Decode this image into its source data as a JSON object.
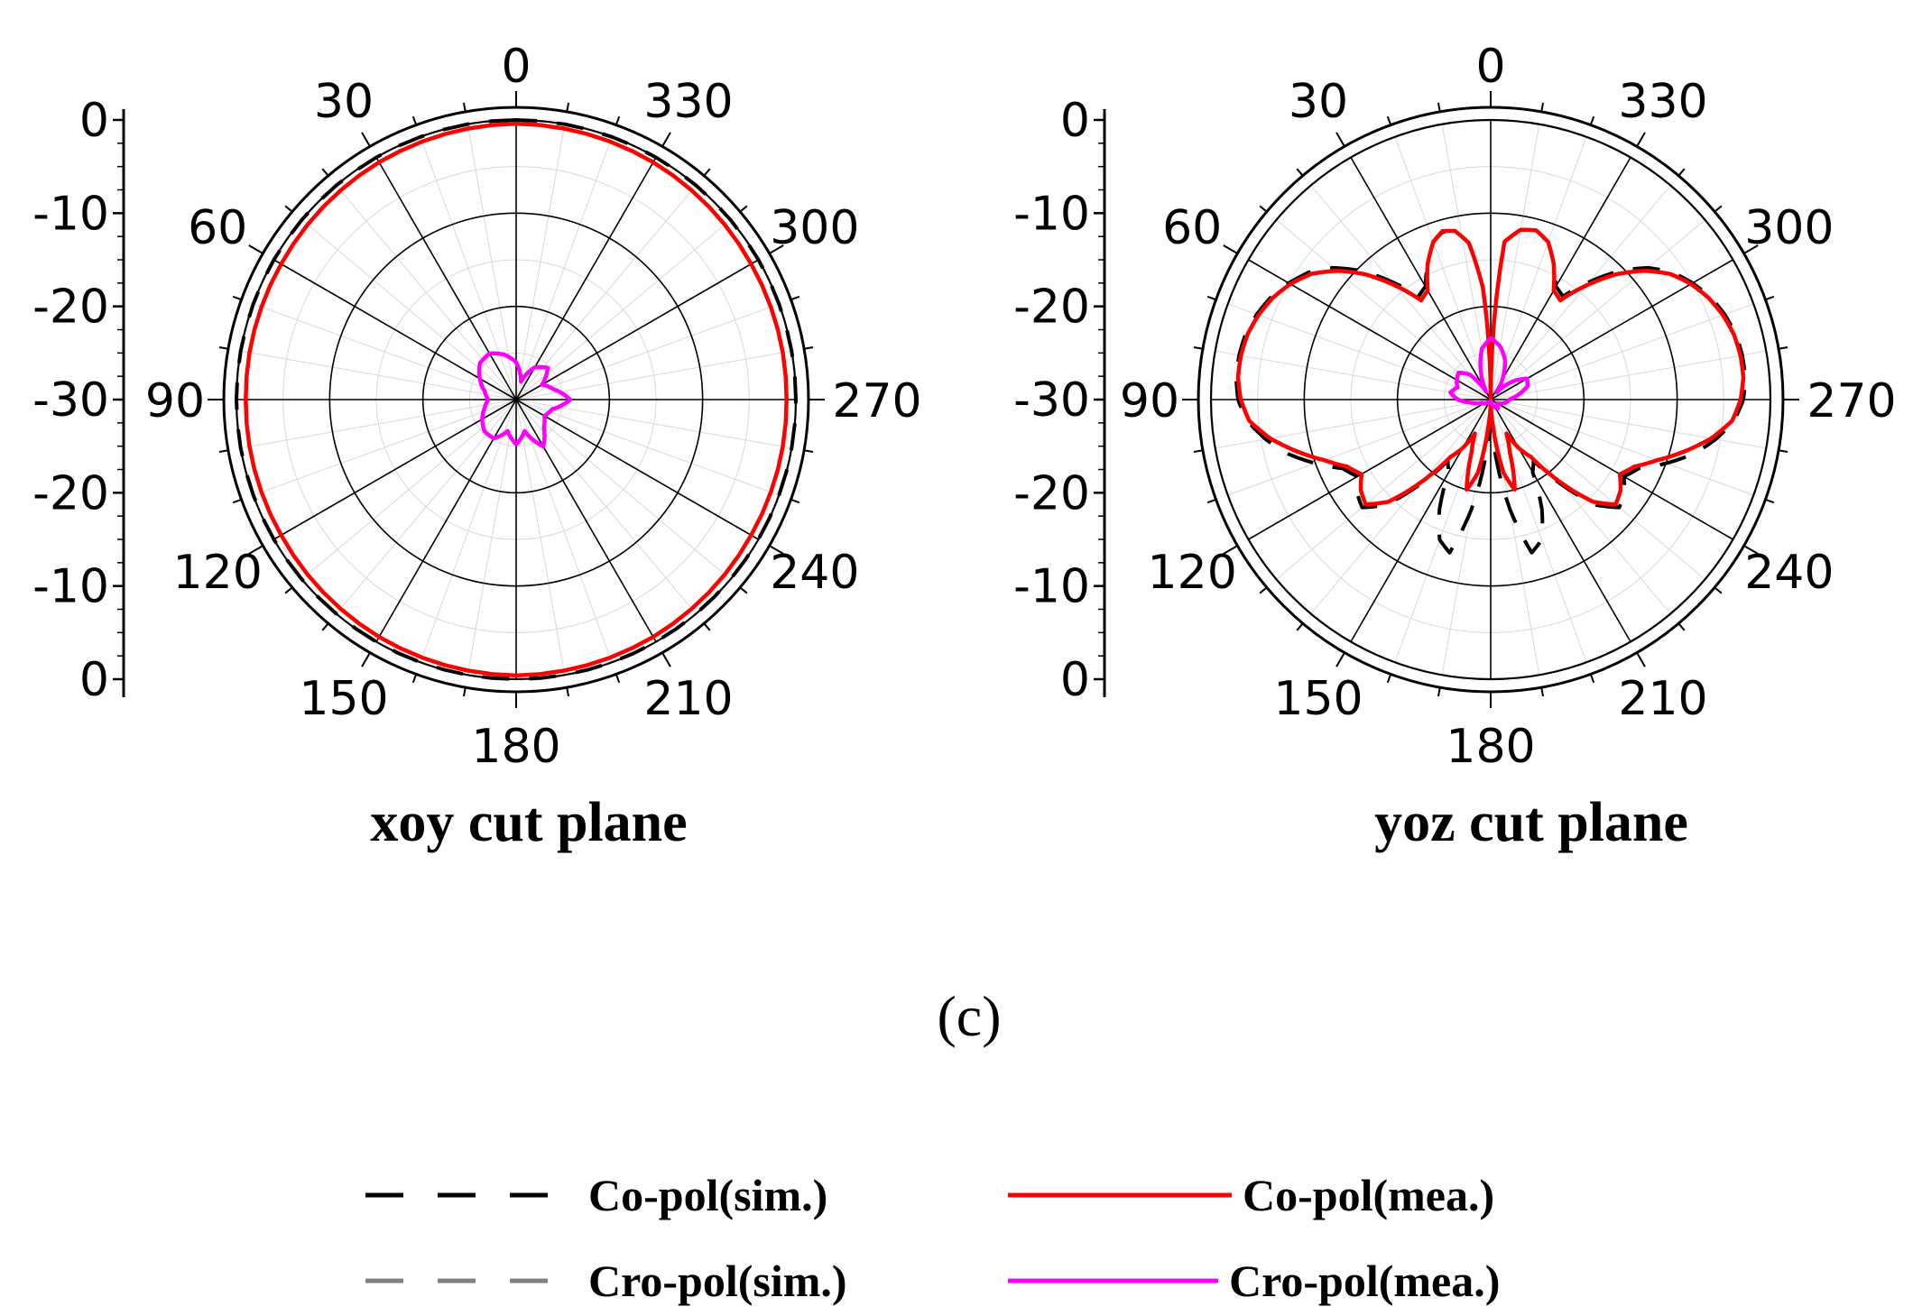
{
  "figure": {
    "panel_label": "(c)",
    "colors": {
      "co_sim": "#000000",
      "cro_sim": "#808080",
      "co_mea": "#ff0000",
      "cro_mea": "#ff00ff",
      "grid": "#000000"
    }
  },
  "legend": [
    {
      "key": "co_sim",
      "label": "Co-pol(sim.)",
      "style": "dashed",
      "color": "#000000"
    },
    {
      "key": "co_mea",
      "label": "Co-pol(mea.)",
      "style": "solid",
      "color": "#ff0000"
    },
    {
      "key": "cro_sim",
      "label": "Cro-pol(sim.)",
      "style": "dashed",
      "color": "#808080"
    },
    {
      "key": "cro_mea",
      "label": "Cro-pol(mea.)",
      "style": "solid",
      "color": "#ff00ff"
    }
  ],
  "chart_data": [
    {
      "type": "polar",
      "title": "xoy cut plane",
      "angle_direction": "counterclockwise",
      "zero_at": "top",
      "angle_ticks": [
        "0",
        "30",
        "60",
        "90",
        "120",
        "150",
        "180",
        "210",
        "240",
        "270",
        "300",
        "330"
      ],
      "radial_unit": "dB",
      "rlim": [
        -30,
        0
      ],
      "radial_ticks": [
        "0",
        "-10",
        "-20",
        "-30",
        "-20",
        "-10",
        "0"
      ],
      "grid": true,
      "series": [
        {
          "key": "co_sim",
          "angles": [
            0,
            30,
            60,
            90,
            120,
            150,
            180,
            210,
            240,
            270,
            300,
            330
          ],
          "values": [
            0,
            0,
            0,
            0,
            0,
            0,
            0,
            0,
            0,
            0,
            0,
            0
          ]
        },
        {
          "key": "co_mea",
          "angles": [
            0,
            30,
            60,
            90,
            120,
            150,
            180,
            210,
            240,
            270,
            300,
            330
          ],
          "values": [
            -0.4,
            -0.6,
            -0.9,
            -1.0,
            -0.9,
            -0.6,
            -0.4,
            -0.6,
            -0.9,
            -1.0,
            -0.9,
            -0.6
          ]
        },
        {
          "key": "cro_mea",
          "angles": [
            0,
            15,
            30,
            45,
            60,
            75,
            90,
            105,
            120,
            135,
            150,
            165,
            180,
            195,
            210,
            225,
            240,
            255,
            270,
            285,
            300,
            315,
            330,
            345
          ],
          "values": [
            -26,
            -25,
            -24.3,
            -24.5,
            -25.5,
            -26.5,
            -27,
            -26.5,
            -25.8,
            -25.2,
            -25.2,
            -26.5,
            -25.2,
            -26.5,
            -24.2,
            -25.8,
            -26.5,
            -26,
            -24.2,
            -25.8,
            -26.8,
            -25.2,
            -26,
            -28
          ]
        }
      ]
    },
    {
      "type": "polar",
      "title": "yoz cut plane",
      "angle_direction": "counterclockwise",
      "zero_at": "top",
      "angle_ticks": [
        "0",
        "30",
        "60",
        "90",
        "120",
        "150",
        "180",
        "210",
        "240",
        "270",
        "300",
        "330"
      ],
      "radial_unit": "dB",
      "rlim": [
        -30,
        0
      ],
      "radial_ticks": [
        "0",
        "-10",
        "-20",
        "-30",
        "-20",
        "-10",
        "0"
      ],
      "grid": true,
      "series": [
        {
          "key": "co_sim",
          "angles": [
            0,
            4,
            8,
            12,
            16,
            20,
            25,
            30,
            35,
            40,
            45,
            50,
            55,
            60,
            65,
            70,
            75,
            80,
            85,
            90,
            95,
            100,
            105,
            110,
            115,
            120,
            125,
            130,
            135,
            140,
            145,
            150,
            155,
            160,
            165,
            170,
            175,
            180,
            185,
            190,
            195,
            200,
            205,
            210,
            215,
            220,
            225,
            230,
            235,
            240,
            245,
            250,
            255,
            260,
            265,
            270,
            275,
            280,
            285,
            290,
            295,
            300,
            305,
            310,
            315,
            320,
            325,
            330,
            335,
            340,
            345,
            350,
            355
          ],
          "values": [
            -30,
            -18,
            -13,
            -11.5,
            -11.3,
            -12,
            -14,
            -16,
            -16.5,
            -13.5,
            -10.5,
            -8,
            -6.2,
            -5,
            -4,
            -3.3,
            -2.8,
            -2.6,
            -2.6,
            -2.9,
            -3.8,
            -5.5,
            -7.5,
            -10,
            -12.5,
            -13.5,
            -12.5,
            -12,
            -14,
            -18,
            -22,
            -21,
            -17,
            -14,
            -13,
            -18,
            -24,
            -30,
            -24,
            -18,
            -13,
            -14,
            -17,
            -21,
            -22,
            -18,
            -14,
            -12,
            -12.5,
            -13.5,
            -12.5,
            -10,
            -7.5,
            -5.5,
            -3.8,
            -2.9,
            -2.6,
            -2.6,
            -2.8,
            -3.3,
            -4,
            -5,
            -6.2,
            -8,
            -10.5,
            -13.5,
            -16.5,
            -16,
            -14,
            -12,
            -11.3,
            -11.5,
            -13
          ]
        },
        {
          "key": "co_mea",
          "angles": [
            0,
            4,
            8,
            12,
            16,
            20,
            25,
            30,
            35,
            40,
            45,
            50,
            55,
            60,
            65,
            70,
            75,
            80,
            85,
            90,
            95,
            100,
            105,
            110,
            115,
            120,
            125,
            130,
            135,
            140,
            145,
            150,
            155,
            160,
            165,
            170,
            175,
            180,
            185,
            190,
            195,
            200,
            205,
            210,
            215,
            220,
            225,
            230,
            235,
            240,
            245,
            250,
            255,
            260,
            265,
            270,
            275,
            280,
            285,
            290,
            295,
            300,
            305,
            310,
            315,
            320,
            325,
            330,
            335,
            340,
            345,
            350,
            355
          ],
          "values": [
            -30,
            -18,
            -13,
            -11.5,
            -11.2,
            -12,
            -14,
            -16.5,
            -17,
            -14,
            -11,
            -8.5,
            -6.5,
            -5.2,
            -4.2,
            -3.5,
            -3,
            -2.8,
            -2.8,
            -3.2,
            -4,
            -6,
            -8.5,
            -11,
            -13,
            -14,
            -13,
            -12.5,
            -14.5,
            -18.5,
            -22.5,
            -24,
            -26,
            -24,
            -20,
            -22,
            -27,
            -30,
            -27,
            -22,
            -20,
            -24,
            -26,
            -24,
            -22.5,
            -18.5,
            -14.5,
            -12.5,
            -13,
            -14,
            -13,
            -11,
            -8.5,
            -6,
            -4,
            -3.2,
            -2.8,
            -2.8,
            -3,
            -3.5,
            -4.2,
            -5.2,
            -6.5,
            -8.5,
            -11,
            -14,
            -17,
            -16.5,
            -14,
            -12,
            -11.2,
            -11.5,
            -13
          ]
        },
        {
          "key": "cro_mea",
          "angles": [
            0,
            10,
            20,
            30,
            40,
            50,
            60,
            70,
            80,
            90,
            100,
            110,
            120,
            130,
            140,
            150,
            160,
            170,
            180,
            190,
            200,
            210,
            220,
            230,
            240,
            250,
            260,
            270,
            280,
            290,
            300,
            310,
            320,
            330,
            340,
            350
          ],
          "values": [
            -23.4,
            -24.5,
            -27,
            -29,
            -26.5,
            -25.5,
            -25.8,
            -26.2,
            -25.6,
            -26.5,
            -28,
            -29,
            -29.2,
            -29.5,
            -29.6,
            -29.6,
            -29.7,
            -29.8,
            -29.8,
            -29.8,
            -29.5,
            -29,
            -28.8,
            -29,
            -29.2,
            -28.8,
            -28.3,
            -28,
            -27,
            -25.8,
            -25.5,
            -27,
            -29,
            -27.5,
            -25.5,
            -24.2
          ]
        }
      ]
    }
  ]
}
